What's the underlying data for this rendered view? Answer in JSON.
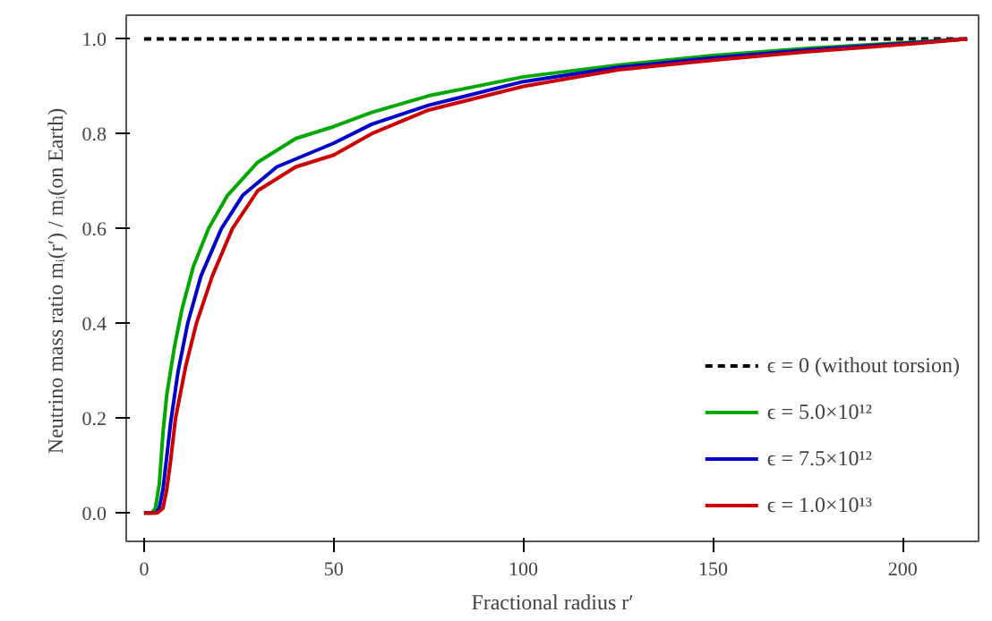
{
  "chart_data": {
    "type": "line",
    "xlabel": "Fractional radius r′",
    "ylabel": "Neutrino mass ratio  mᵢ(r′) / mᵢ(on Earth)",
    "xlim": [
      -4.7,
      220
    ],
    "ylim": [
      -0.06,
      1.05
    ],
    "xticks": [
      0,
      50,
      100,
      150,
      200
    ],
    "yticks": [
      {
        "value": 0,
        "label": "0.0"
      },
      {
        "value": 0.2,
        "label": "0.2"
      },
      {
        "value": 0.4,
        "label": "0.4"
      },
      {
        "value": 0.6,
        "label": "0.6"
      },
      {
        "value": 0.8,
        "label": "0.8"
      },
      {
        "value": 1,
        "label": "1.0"
      }
    ],
    "grid": false,
    "legend": "bottom right",
    "marker": "none",
    "series": [
      {
        "name": "ϵ = 0 (without torsion)",
        "color": "#000000",
        "line_style": "dashed",
        "x": [
          0,
          217
        ],
        "values": [
          1.0,
          1.0
        ]
      },
      {
        "name": "ϵ = 5.0×10¹²",
        "color": "#00a800",
        "line_style": "solid",
        "x": [
          0,
          2,
          3,
          4,
          5,
          6,
          8,
          10,
          13,
          17,
          22,
          30,
          40,
          50,
          60,
          75,
          100,
          125,
          150,
          175,
          200,
          217
        ],
        "values": [
          0,
          0,
          0.01,
          0.06,
          0.17,
          0.25,
          0.35,
          0.43,
          0.52,
          0.6,
          0.67,
          0.74,
          0.79,
          0.815,
          0.845,
          0.88,
          0.92,
          0.945,
          0.965,
          0.98,
          0.992,
          1.0
        ]
      },
      {
        "name": "ϵ = 7.5×10¹²",
        "color": "#0000cc",
        "line_style": "solid",
        "x": [
          0,
          3,
          4,
          5,
          6,
          7,
          9,
          11.5,
          15,
          20.4,
          26,
          35,
          50,
          60,
          75,
          100,
          125,
          150,
          175,
          200,
          217
        ],
        "values": [
          0,
          0,
          0.01,
          0.05,
          0.12,
          0.19,
          0.3,
          0.4,
          0.5,
          0.6,
          0.67,
          0.73,
          0.78,
          0.82,
          0.86,
          0.91,
          0.94,
          0.96,
          0.977,
          0.99,
          1.0
        ]
      },
      {
        "name": "ϵ = 1.0×10¹³",
        "color": "#cc0000",
        "line_style": "solid",
        "x": [
          0,
          3.5,
          5,
          6,
          7,
          8.3,
          11,
          13.8,
          18,
          23.3,
          30,
          40,
          50,
          60,
          75,
          100,
          125,
          150,
          175,
          200,
          217
        ],
        "values": [
          0,
          0,
          0.01,
          0.05,
          0.11,
          0.2,
          0.31,
          0.4,
          0.5,
          0.6,
          0.68,
          0.73,
          0.755,
          0.8,
          0.85,
          0.9,
          0.935,
          0.955,
          0.973,
          0.988,
          1.0
        ]
      }
    ]
  }
}
